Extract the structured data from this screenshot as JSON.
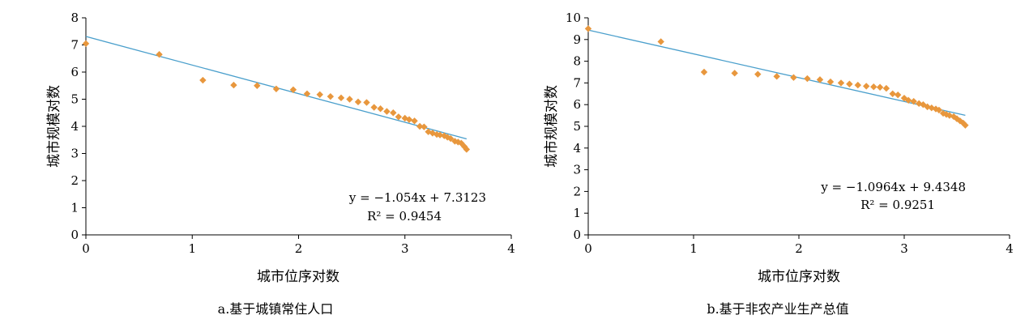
{
  "colors": {
    "points": "#E8973D",
    "trend": "#4A9FCC",
    "axis": "#000000"
  },
  "chart_data": [
    {
      "type": "scatter",
      "caption": "a.基于城镇常住人口",
      "xlabel": "城市位序对数",
      "ylabel": "城市规模对数",
      "xlim": [
        0,
        4
      ],
      "ylim": [
        0,
        8
      ],
      "xticks": [
        "0",
        "1",
        "2",
        "3",
        "4"
      ],
      "yticks": [
        "0",
        "1",
        "2",
        "3",
        "4",
        "5",
        "6",
        "7",
        "8"
      ],
      "trendline": {
        "slope": -1.054,
        "intercept": 7.3123,
        "x_range": [
          0,
          3.58
        ]
      },
      "equation": "y = −1.054x + 7.3123",
      "r2": "R² = 0.9454",
      "points": [
        [
          0,
          7.05
        ],
        [
          0.69,
          6.65
        ],
        [
          1.1,
          5.7
        ],
        [
          1.39,
          5.52
        ],
        [
          1.61,
          5.5
        ],
        [
          1.79,
          5.38
        ],
        [
          1.95,
          5.35
        ],
        [
          2.08,
          5.2
        ],
        [
          2.2,
          5.17
        ],
        [
          2.3,
          5.1
        ],
        [
          2.4,
          5.05
        ],
        [
          2.48,
          5.0
        ],
        [
          2.56,
          4.9
        ],
        [
          2.64,
          4.88
        ],
        [
          2.71,
          4.7
        ],
        [
          2.77,
          4.65
        ],
        [
          2.83,
          4.55
        ],
        [
          2.89,
          4.5
        ],
        [
          2.94,
          4.35
        ],
        [
          3.0,
          4.3
        ],
        [
          3.04,
          4.25
        ],
        [
          3.09,
          4.2
        ],
        [
          3.14,
          4.0
        ],
        [
          3.18,
          3.98
        ],
        [
          3.22,
          3.8
        ],
        [
          3.26,
          3.75
        ],
        [
          3.3,
          3.7
        ],
        [
          3.33,
          3.68
        ],
        [
          3.37,
          3.65
        ],
        [
          3.4,
          3.6
        ],
        [
          3.43,
          3.55
        ],
        [
          3.47,
          3.45
        ],
        [
          3.5,
          3.42
        ],
        [
          3.53,
          3.38
        ],
        [
          3.56,
          3.25
        ],
        [
          3.58,
          3.15
        ]
      ]
    },
    {
      "type": "scatter",
      "caption": "b.基于非农产业生产总值",
      "xlabel": "城市位序对数",
      "ylabel": "城市规模对数",
      "xlim": [
        0,
        4
      ],
      "ylim": [
        0,
        10
      ],
      "xticks": [
        "0",
        "1",
        "2",
        "3",
        "4"
      ],
      "yticks": [
        "0",
        "1",
        "2",
        "3",
        "4",
        "5",
        "6",
        "7",
        "8",
        "9",
        "10"
      ],
      "trendline": {
        "slope": -1.0964,
        "intercept": 9.4348,
        "x_range": [
          0,
          3.58
        ]
      },
      "equation": "y = −1.0964x + 9.4348",
      "r2": "R² = 0.9251",
      "points": [
        [
          0,
          9.5
        ],
        [
          0.69,
          8.9
        ],
        [
          1.1,
          7.5
        ],
        [
          1.39,
          7.45
        ],
        [
          1.61,
          7.4
        ],
        [
          1.79,
          7.3
        ],
        [
          1.95,
          7.25
        ],
        [
          2.08,
          7.2
        ],
        [
          2.2,
          7.15
        ],
        [
          2.3,
          7.05
        ],
        [
          2.4,
          7.0
        ],
        [
          2.48,
          6.95
        ],
        [
          2.56,
          6.9
        ],
        [
          2.64,
          6.85
        ],
        [
          2.71,
          6.82
        ],
        [
          2.77,
          6.8
        ],
        [
          2.83,
          6.75
        ],
        [
          2.89,
          6.5
        ],
        [
          2.94,
          6.45
        ],
        [
          3.0,
          6.3
        ],
        [
          3.04,
          6.2
        ],
        [
          3.09,
          6.15
        ],
        [
          3.14,
          6.05
        ],
        [
          3.18,
          6.0
        ],
        [
          3.22,
          5.9
        ],
        [
          3.26,
          5.85
        ],
        [
          3.3,
          5.8
        ],
        [
          3.33,
          5.75
        ],
        [
          3.37,
          5.6
        ],
        [
          3.4,
          5.55
        ],
        [
          3.43,
          5.5
        ],
        [
          3.47,
          5.45
        ],
        [
          3.5,
          5.35
        ],
        [
          3.53,
          5.25
        ],
        [
          3.56,
          5.15
        ],
        [
          3.58,
          5.05
        ]
      ]
    }
  ]
}
